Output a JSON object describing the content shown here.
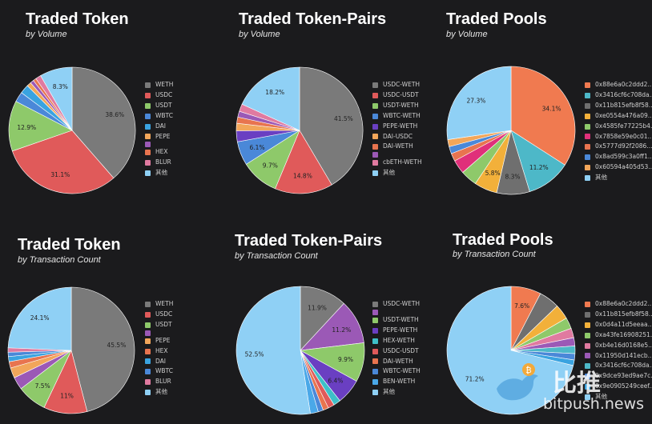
{
  "chart_data": [
    {
      "type": "pie",
      "title": "Traded Token",
      "subtitle": "by Volume",
      "slices": [
        {
          "label": "WETH",
          "value": 38.6,
          "color": "#7a7a7a",
          "display": "38.6%"
        },
        {
          "label": "USDC",
          "value": 31.1,
          "color": "#e05a5a",
          "display": "31.1%"
        },
        {
          "label": "USDT",
          "value": 12.9,
          "color": "#8ec96a",
          "display": "12.9%"
        },
        {
          "label": "WBTC",
          "value": 2.6,
          "color": "#4a88d8",
          "display": ""
        },
        {
          "label": "DAI",
          "value": 2.3,
          "color": "#3aa3e0",
          "display": ""
        },
        {
          "label": "PEPE",
          "value": 1.1,
          "color": "#f2a65a",
          "display": ""
        },
        {
          "label": "",
          "value": 0.9,
          "color": "#9b59b6",
          "display": ""
        },
        {
          "label": "HEX",
          "value": 0.8,
          "color": "#e8744f",
          "display": ""
        },
        {
          "label": "BLUR",
          "value": 1.4,
          "color": "#e07aa0",
          "display": ""
        },
        {
          "label": "其他",
          "value": 8.3,
          "color": "#8fd0f5",
          "display": "8.3%"
        }
      ]
    },
    {
      "type": "pie",
      "title": "Traded Token-Pairs",
      "subtitle": "by Volume",
      "slices": [
        {
          "label": "USDC-WETH",
          "value": 41.5,
          "color": "#7a7a7a",
          "display": "41.5%"
        },
        {
          "label": "USDC-USDT",
          "value": 14.8,
          "color": "#e05a5a",
          "display": "14.8%"
        },
        {
          "label": "USDT-WETH",
          "value": 9.7,
          "color": "#8ec96a",
          "display": "9.7%"
        },
        {
          "label": "WBTC-WETH",
          "value": 6.1,
          "color": "#4a88d8",
          "display": "6.1%"
        },
        {
          "label": "PEPE-WETH",
          "value": 2.8,
          "color": "#6a3fc2",
          "display": ""
        },
        {
          "label": "DAI-USDC",
          "value": 1.9,
          "color": "#f2a65a",
          "display": ""
        },
        {
          "label": "DAI-WETH",
          "value": 1.6,
          "color": "#e8744f",
          "display": ""
        },
        {
          "label": "",
          "value": 1.5,
          "color": "#9b59b6",
          "display": ""
        },
        {
          "label": "cbETH-WETH",
          "value": 1.9,
          "color": "#e07aa0",
          "display": ""
        },
        {
          "label": "其他",
          "value": 18.2,
          "color": "#8fd0f5",
          "display": "18.2%"
        }
      ]
    },
    {
      "type": "pie",
      "title": "Traded Pools",
      "subtitle": "by Volume",
      "slices": [
        {
          "label": "0x88e6a0c2ddd2...",
          "value": 34.1,
          "color": "#f07a50",
          "display": "34.1%"
        },
        {
          "label": "0x3416cf6c708da...",
          "value": 11.2,
          "color": "#4db8c8",
          "display": "11.2%"
        },
        {
          "label": "0x11b815efb8f58...",
          "value": 8.3,
          "color": "#6f6f6f",
          "display": "8.3%"
        },
        {
          "label": "0xe0554a476a09...",
          "value": 5.8,
          "color": "#f2b03a",
          "display": "5.8%"
        },
        {
          "label": "0x4585fe77225b4...",
          "value": 4.2,
          "color": "#8ec96a",
          "display": ""
        },
        {
          "label": "0x7858e59e0c01...",
          "value": 3.5,
          "color": "#e0307a",
          "display": ""
        },
        {
          "label": "0x5777d92f2086...",
          "value": 2.0,
          "color": "#e8744f",
          "display": ""
        },
        {
          "label": "0x8ad599c3a0ff1...",
          "value": 1.8,
          "color": "#4a88d8",
          "display": ""
        },
        {
          "label": "0x60594a405d53...",
          "value": 1.8,
          "color": "#f2a65a",
          "display": ""
        },
        {
          "label": "其他",
          "value": 27.3,
          "color": "#8fd0f5",
          "display": "27.3%"
        }
      ]
    },
    {
      "type": "pie",
      "title": "Traded Token",
      "subtitle": "by Transaction Count",
      "slices": [
        {
          "label": "WETH",
          "value": 45.5,
          "color": "#7a7a7a",
          "display": "45.5%"
        },
        {
          "label": "USDC",
          "value": 11,
          "color": "#e05a5a",
          "display": "11%"
        },
        {
          "label": "USDT",
          "value": 7.5,
          "color": "#8ec96a",
          "display": "7.5%"
        },
        {
          "label": "",
          "value": 3.2,
          "color": "#9b59b6",
          "display": ""
        },
        {
          "label": "PEPE",
          "value": 2.6,
          "color": "#f2a65a",
          "display": ""
        },
        {
          "label": "HEX",
          "value": 1.6,
          "color": "#e8744f",
          "display": ""
        },
        {
          "label": "DAI",
          "value": 1.3,
          "color": "#3aa3e0",
          "display": ""
        },
        {
          "label": "WBTC",
          "value": 1.1,
          "color": "#4a88d8",
          "display": ""
        },
        {
          "label": "BLUR",
          "value": 1.1,
          "color": "#e07aa0",
          "display": ""
        },
        {
          "label": "其他",
          "value": 24.1,
          "color": "#8fd0f5",
          "display": "24.1%"
        }
      ]
    },
    {
      "type": "pie",
      "title": "Traded Token-Pairs",
      "subtitle": "by Transaction Count",
      "slices": [
        {
          "label": "USDC-WETH",
          "value": 11.9,
          "color": "#7a7a7a",
          "display": "11.9%"
        },
        {
          "label": "",
          "value": 11.2,
          "color": "#9b59b6",
          "display": "11.2%"
        },
        {
          "label": "USDT-WETH",
          "value": 9.9,
          "color": "#8ec96a",
          "display": "9.9%"
        },
        {
          "label": "PEPE-WETH",
          "value": 6.4,
          "color": "#6a3fc2",
          "display": "6.4%"
        },
        {
          "label": "HEX-WETH",
          "value": 1.8,
          "color": "#3ec0c8",
          "display": ""
        },
        {
          "label": "USDC-USDT",
          "value": 1.6,
          "color": "#e05a5a",
          "display": ""
        },
        {
          "label": "DAI-WETH",
          "value": 1.4,
          "color": "#e8744f",
          "display": ""
        },
        {
          "label": "WBTC-WETH",
          "value": 1.3,
          "color": "#4a88d8",
          "display": ""
        },
        {
          "label": "BEN-WETH",
          "value": 2.0,
          "color": "#4aa8e8",
          "display": ""
        },
        {
          "label": "其他",
          "value": 52.5,
          "color": "#8fd0f5",
          "display": "52.5%"
        }
      ]
    },
    {
      "type": "pie",
      "title": "Traded Pools",
      "subtitle": "by Transaction Count",
      "slices": [
        {
          "label": "0x88e6a0c2ddd2...",
          "value": 7.6,
          "color": "#f07a50",
          "display": "7.6%"
        },
        {
          "label": "0x11b815efb8f58...",
          "value": 5.2,
          "color": "#6f6f6f",
          "display": ""
        },
        {
          "label": "0x0d4a11d5eeaa...",
          "value": 3.8,
          "color": "#f2b03a",
          "display": ""
        },
        {
          "label": "0xa43fe16908251...",
          "value": 2.8,
          "color": "#8ec96a",
          "display": ""
        },
        {
          "label": "0xb4e16d0168e5...",
          "value": 2.4,
          "color": "#e07aa0",
          "display": ""
        },
        {
          "label": "0x11950d141ecb...",
          "value": 2.1,
          "color": "#9b59b6",
          "display": ""
        },
        {
          "label": "0x3416cf6c708da...",
          "value": 1.9,
          "color": "#4db8c8",
          "display": ""
        },
        {
          "label": "0x9dce93ed9ae7c...",
          "value": 1.6,
          "color": "#4a88d8",
          "display": ""
        },
        {
          "label": "0x9e0905249ceef...",
          "value": 1.4,
          "color": "#3aa3e0",
          "display": ""
        },
        {
          "label": "其他",
          "value": 71.2,
          "color": "#8fd0f5",
          "display": "71.2%"
        }
      ]
    }
  ],
  "watermark": {
    "brand_cn": "比推",
    "brand_url": "bitpush.news"
  }
}
